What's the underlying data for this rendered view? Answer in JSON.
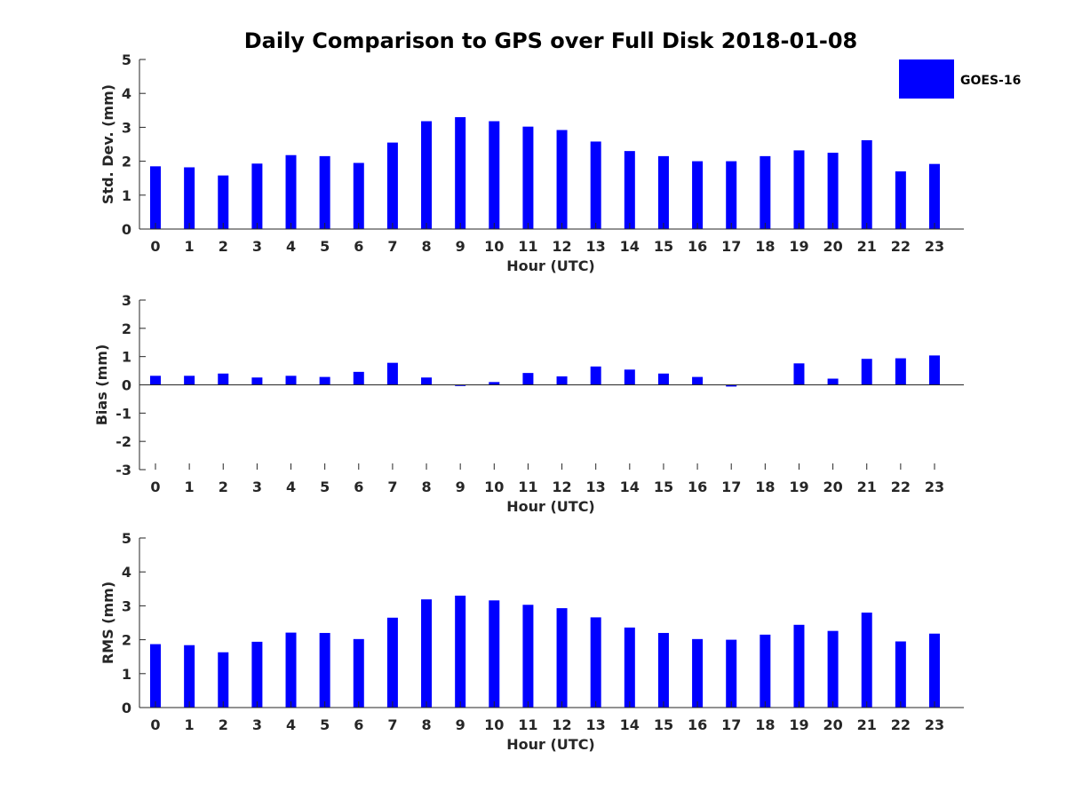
{
  "figure": {
    "title": "Daily Comparison to GPS over Full Disk 2018-01-08",
    "legend": {
      "label": "GOES-16",
      "color": "#0000ff"
    }
  },
  "chart_data": [
    {
      "type": "bar",
      "title": "Daily Comparison to GPS over Full Disk 2018-01-08",
      "xlabel": "Hour (UTC)",
      "ylabel": "Std. Dev. (mm)",
      "ylim": [
        0,
        5
      ],
      "yticks": [
        "0",
        "1",
        "2",
        "3",
        "4",
        "5"
      ],
      "categories": [
        "0",
        "1",
        "2",
        "3",
        "4",
        "5",
        "6",
        "7",
        "8",
        "9",
        "10",
        "11",
        "12",
        "13",
        "14",
        "15",
        "16",
        "17",
        "18",
        "19",
        "20",
        "21",
        "22",
        "23"
      ],
      "series": [
        {
          "name": "GOES-16",
          "color": "#0000ff",
          "values": [
            1.85,
            1.82,
            1.58,
            1.93,
            2.18,
            2.15,
            1.95,
            2.55,
            3.18,
            3.3,
            3.18,
            3.02,
            2.92,
            2.58,
            2.3,
            2.15,
            2.0,
            2.0,
            2.15,
            2.32,
            2.25,
            2.62,
            1.7,
            1.92
          ]
        }
      ]
    },
    {
      "type": "bar",
      "title": "",
      "xlabel": "Hour (UTC)",
      "ylabel": "Bias (mm)",
      "ylim": [
        -3,
        3
      ],
      "yticks": [
        "-3",
        "-2",
        "-1",
        "0",
        "1",
        "2",
        "3"
      ],
      "categories": [
        "0",
        "1",
        "2",
        "3",
        "4",
        "5",
        "6",
        "7",
        "8",
        "9",
        "10",
        "11",
        "12",
        "13",
        "14",
        "15",
        "16",
        "17",
        "18",
        "19",
        "20",
        "21",
        "22",
        "23"
      ],
      "series": [
        {
          "name": "GOES-16",
          "color": "#0000ff",
          "values": [
            0.32,
            0.32,
            0.4,
            0.26,
            0.32,
            0.28,
            0.46,
            0.78,
            0.26,
            -0.04,
            0.1,
            0.42,
            0.3,
            0.65,
            0.54,
            0.4,
            0.28,
            -0.06,
            0.0,
            0.76,
            0.22,
            0.92,
            0.94,
            1.04
          ]
        }
      ]
    },
    {
      "type": "bar",
      "title": "",
      "xlabel": "Hour (UTC)",
      "ylabel": "RMS (mm)",
      "ylim": [
        0,
        5
      ],
      "yticks": [
        "0",
        "1",
        "2",
        "3",
        "4",
        "5"
      ],
      "categories": [
        "0",
        "1",
        "2",
        "3",
        "4",
        "5",
        "6",
        "7",
        "8",
        "9",
        "10",
        "11",
        "12",
        "13",
        "14",
        "15",
        "16",
        "17",
        "18",
        "19",
        "20",
        "21",
        "22",
        "23"
      ],
      "series": [
        {
          "name": "GOES-16",
          "color": "#0000ff",
          "values": [
            1.87,
            1.84,
            1.63,
            1.94,
            2.21,
            2.2,
            2.02,
            2.65,
            3.19,
            3.3,
            3.16,
            3.03,
            2.93,
            2.66,
            2.36,
            2.2,
            2.02,
            2.0,
            2.15,
            2.44,
            2.26,
            2.8,
            1.95,
            2.18
          ]
        }
      ]
    }
  ]
}
